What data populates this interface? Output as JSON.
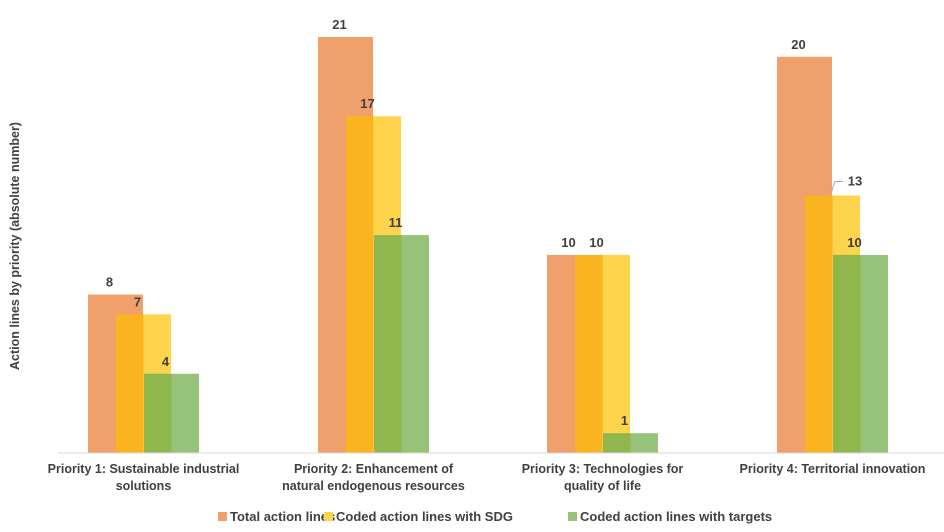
{
  "chart_data": {
    "type": "bar",
    "ylabel": "Action lines by priority (absolute number)",
    "xlabel": "",
    "ylim": [
      0,
      21
    ],
    "grid": false,
    "legend_position": "bottom",
    "categories": [
      [
        "Priority 1: Sustainable industrial",
        "solutions"
      ],
      [
        "Priority 2: Enhancement of",
        "natural endogenous resources"
      ],
      [
        "Priority 3: Technologies for",
        "quality of life"
      ],
      [
        "Priority 4: Territorial innovation"
      ]
    ],
    "series": [
      {
        "name": "Total action lines",
        "color": "#F0A06B",
        "values": [
          8,
          21,
          10,
          20
        ]
      },
      {
        "name": "Coded action lines with SDG",
        "color": "#FFD44D",
        "values": [
          7,
          17,
          10,
          13
        ]
      },
      {
        "name": "Coded action lines with targets",
        "color": "#97C27A",
        "values": [
          4,
          11,
          1,
          10
        ]
      }
    ]
  }
}
